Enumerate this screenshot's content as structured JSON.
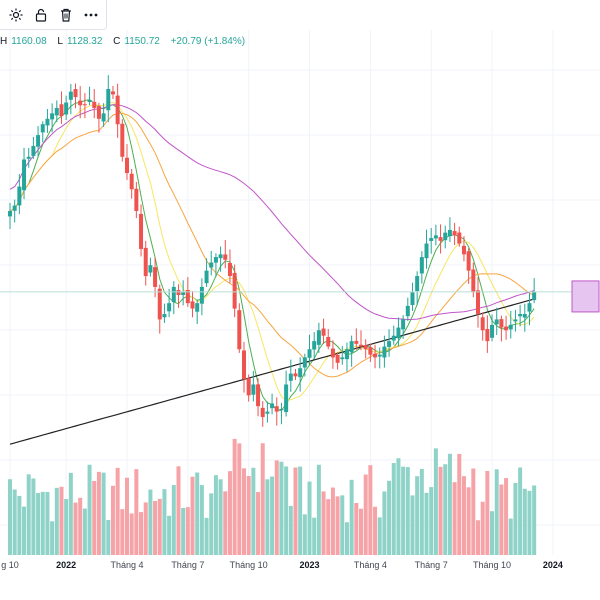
{
  "toolbar": {
    "items": [
      {
        "name": "settings",
        "icon": "gear-icon"
      },
      {
        "name": "lock",
        "icon": "unlock-icon"
      },
      {
        "name": "delete",
        "icon": "trash-icon"
      },
      {
        "name": "more",
        "icon": "more-horizontal-icon"
      }
    ]
  },
  "legend": {
    "high_key": "H",
    "high_value": "1160.08",
    "low_key": "L",
    "low_value": "1128.32",
    "close_key": "C",
    "close_value": "1150.72",
    "change": "+20.79 (+1.84%)"
  },
  "colors": {
    "up": "#26a69a",
    "down": "#ef5350",
    "vol_up": "#8fd3c8",
    "vol_down": "#f6a3a8",
    "ma_green": "#4caf50",
    "ma_yellow": "#f5e663",
    "ma_orange": "#f7a541",
    "ma_purple": "#c056c8",
    "ma_black": "#222222",
    "price_line": "#b7dfd5",
    "price_box_fill": "#e6c6f0",
    "price_box_border": "#c056c8"
  },
  "chart_data": {
    "type": "candlestick",
    "interval": "weekly",
    "x_ticks": [
      {
        "label": "g 10",
        "week": 0
      },
      {
        "label": "2022",
        "week": 12,
        "bold": true
      },
      {
        "label": "Tháng 4",
        "week": 25
      },
      {
        "label": "Tháng 7",
        "week": 38
      },
      {
        "label": "Tháng 10",
        "week": 51
      },
      {
        "label": "2023",
        "week": 64,
        "bold": true
      },
      {
        "label": "Tháng 4",
        "week": 77
      },
      {
        "label": "Tháng 7",
        "week": 90
      },
      {
        "label": "Tháng 10",
        "week": 103
      },
      {
        "label": "2024",
        "week": 116,
        "bold": true
      }
    ],
    "grid": true,
    "close_series": [
      1300,
      1310,
      1345,
      1395,
      1400,
      1420,
      1440,
      1460,
      1470,
      1480,
      1490,
      1475,
      1500,
      1520,
      1510,
      1495,
      1495,
      1505,
      1490,
      1470,
      1480,
      1525,
      1515,
      1460,
      1400,
      1370,
      1340,
      1300,
      1230,
      1180,
      1200,
      1160,
      1100,
      1110,
      1130,
      1160,
      1145,
      1150,
      1130,
      1120,
      1130,
      1160,
      1190,
      1205,
      1215,
      1220,
      1210,
      1180,
      1120,
      1045,
      990,
      960,
      980,
      940,
      920,
      930,
      945,
      930,
      935,
      980,
      1000,
      995,
      1010,
      1030,
      1045,
      1060,
      1080,
      1070,
      1050,
      1030,
      1020,
      1030,
      1045,
      1060,
      1055,
      1050,
      1045,
      1035,
      1030,
      1035,
      1050,
      1060,
      1070,
      1085,
      1100,
      1125,
      1150,
      1180,
      1215,
      1240,
      1250,
      1255,
      1245,
      1260,
      1265,
      1255,
      1240,
      1220,
      1190,
      1150,
      1110,
      1080,
      1060,
      1090,
      1100,
      1085,
      1080,
      1090,
      1100,
      1110,
      1110,
      1130,
      1150
    ],
    "ma_periods": [
      5,
      10,
      20,
      50,
      200
    ],
    "volume_range": [
      0,
      100
    ],
    "last_price": 1150.72
  }
}
